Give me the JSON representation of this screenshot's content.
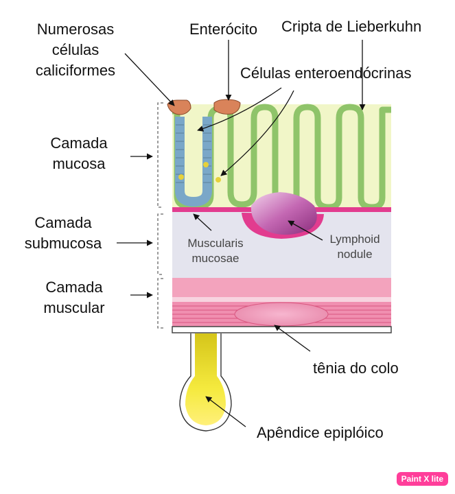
{
  "labels": {
    "goblet_cells": [
      "Numerosas",
      "células",
      "caliciformes"
    ],
    "enterocyte": "Enterócito",
    "crypt": "Cripta de Lieberkuhn",
    "enteroendocrine": "Células enteroendócrinas",
    "mucosa": [
      "Camada",
      "mucosa"
    ],
    "submucosa": [
      "Camada",
      "submucosa"
    ],
    "muscular": [
      "Camada",
      "muscular"
    ],
    "muscularis_mucosae": [
      "Muscularis",
      "mucosae"
    ],
    "lymphoid_nodule": [
      "Lymphoid",
      "nodule"
    ],
    "tenia": "tênia do colo",
    "appendix": "Apêndice epiplóico"
  },
  "watermark": "Paint X lite",
  "colors": {
    "mucosa": "#f1f6c8",
    "crypt_outline": "#8fc46a",
    "submucosa": "#e4e4ee",
    "muscle": "#f3a3bd",
    "nodule": "#b0479a",
    "appendix": "#f2e23a",
    "badge": "#ff3e9a"
  }
}
